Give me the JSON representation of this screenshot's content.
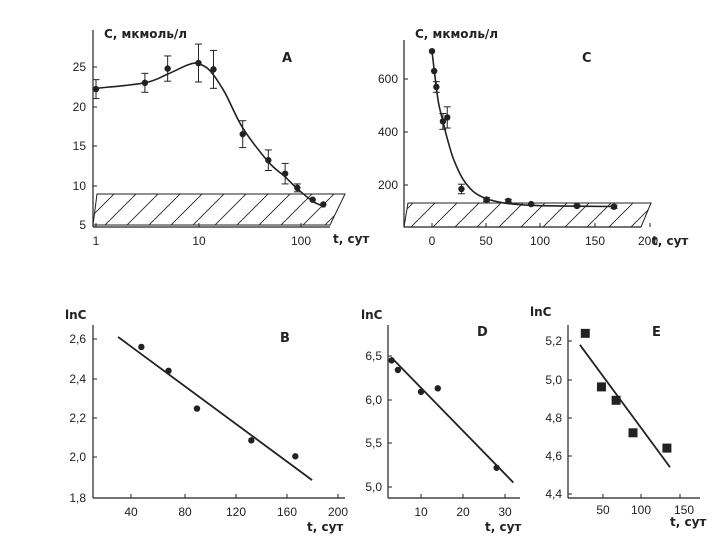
{
  "chart_data": [
    {
      "id": "A",
      "panel_label": "A",
      "type": "line",
      "scale_x": "log",
      "ylabel": "C, мкмоль/л",
      "xlabel": "t, сут",
      "x_ticks": [
        "1",
        "10",
        "100"
      ],
      "y_ticks": [
        "5",
        "10",
        "15",
        "20",
        "25"
      ],
      "xlim": [
        1,
        230
      ],
      "ylim": [
        5,
        28
      ],
      "threshold_band": [
        5.5,
        9
      ],
      "points": [
        {
          "x": 1,
          "y": 22.2,
          "err": 1.2
        },
        {
          "x": 3,
          "y": 23.0,
          "err": 1.2
        },
        {
          "x": 5,
          "y": 24.8,
          "err": 1.6
        },
        {
          "x": 10,
          "y": 25.5,
          "err": 2.4
        },
        {
          "x": 14,
          "y": 24.7,
          "err": 2.4
        },
        {
          "x": 27,
          "y": 16.5,
          "err": 1.7
        },
        {
          "x": 48,
          "y": 13.2,
          "err": 1.3
        },
        {
          "x": 70,
          "y": 11.5,
          "err": 1.3
        },
        {
          "x": 92,
          "y": 9.7,
          "err": 0.5
        },
        {
          "x": 130,
          "y": 8.2,
          "err": 0
        },
        {
          "x": 165,
          "y": 7.6,
          "err": 0
        }
      ],
      "curve": [
        [
          1,
          22.3
        ],
        [
          3,
          23.0
        ],
        [
          5,
          24.1
        ],
        [
          8,
          25.3
        ],
        [
          10,
          25.4
        ],
        [
          13,
          24.5
        ],
        [
          18,
          21.8
        ],
        [
          27,
          17.3
        ],
        [
          48,
          13.0
        ],
        [
          70,
          11.1
        ],
        [
          92,
          9.6
        ],
        [
          130,
          8.0
        ],
        [
          165,
          7.4
        ]
      ]
    },
    {
      "id": "C",
      "panel_label": "C",
      "type": "line",
      "ylabel": "C, мкмоль/л",
      "xlabel": "t, сут",
      "x_ticks": [
        "0",
        "50",
        "100",
        "150",
        "200"
      ],
      "y_ticks": [
        "200",
        "400",
        "600"
      ],
      "xlim": [
        -25,
        205
      ],
      "ylim": [
        60,
        760
      ],
      "threshold_band": [
        80,
        125
      ],
      "points": [
        {
          "x": 0,
          "y": 705,
          "err": 0
        },
        {
          "x": 2,
          "y": 630,
          "err": 0
        },
        {
          "x": 4,
          "y": 570,
          "err": 20
        },
        {
          "x": 10,
          "y": 440,
          "err": 30
        },
        {
          "x": 14,
          "y": 455,
          "err": 40
        },
        {
          "x": 27,
          "y": 185,
          "err": 18
        },
        {
          "x": 50,
          "y": 145,
          "err": 8
        },
        {
          "x": 70,
          "y": 140,
          "err": 6
        },
        {
          "x": 91,
          "y": 128,
          "err": 4
        },
        {
          "x": 133,
          "y": 121,
          "err": 3
        },
        {
          "x": 167,
          "y": 118,
          "err": 6
        }
      ],
      "curve": [
        [
          0,
          705
        ],
        [
          3,
          600
        ],
        [
          6,
          510
        ],
        [
          10,
          440
        ],
        [
          15,
          360
        ],
        [
          20,
          295
        ],
        [
          28,
          225
        ],
        [
          38,
          175
        ],
        [
          50,
          148
        ],
        [
          65,
          133
        ],
        [
          80,
          126
        ],
        [
          100,
          122
        ],
        [
          130,
          120
        ],
        [
          165,
          119
        ]
      ]
    },
    {
      "id": "B",
      "panel_label": "B",
      "type": "scatter",
      "ylabel": "lnC",
      "xlabel": "t, сут",
      "x_ticks": [
        "40",
        "80",
        "120",
        "160",
        "200"
      ],
      "y_ticks": [
        "1,8",
        "2,0",
        "2,2",
        "2,4",
        "2,6"
      ],
      "xlim": [
        10,
        200
      ],
      "ylim": [
        1.8,
        2.7
      ],
      "points": [
        [
          48,
          2.56
        ],
        [
          69,
          2.44
        ],
        [
          91,
          2.25
        ],
        [
          133,
          2.09
        ],
        [
          167,
          2.01
        ]
      ],
      "fit_line": [
        [
          30,
          2.61
        ],
        [
          180,
          1.89
        ]
      ]
    },
    {
      "id": "D",
      "panel_label": "D",
      "type": "scatter",
      "ylabel": "lnC",
      "xlabel": "t, сут",
      "x_ticks": [
        "10",
        "20",
        "30"
      ],
      "y_ticks": [
        "5,0",
        "5,5",
        "6,0",
        "6,5"
      ],
      "xlim": [
        2,
        34
      ],
      "ylim": [
        4.95,
        6.8
      ],
      "points": [
        [
          3,
          6.45
        ],
        [
          4.5,
          6.34
        ],
        [
          10,
          6.09
        ],
        [
          14,
          6.13
        ],
        [
          28,
          5.22
        ]
      ],
      "fit_line": [
        [
          3,
          6.48
        ],
        [
          32,
          5.05
        ]
      ]
    },
    {
      "id": "E",
      "panel_label": "E",
      "type": "scatter",
      "ylabel": "lnC",
      "xlabel": "t, сут",
      "x_ticks": [
        "50",
        "100",
        "150"
      ],
      "y_ticks": [
        "4,4",
        "4,6",
        "4,8",
        "5,0",
        "5,2"
      ],
      "xlim": [
        5,
        175
      ],
      "ylim": [
        4.4,
        5.33
      ],
      "points": [
        [
          27,
          5.24
        ],
        [
          48,
          4.96
        ],
        [
          67,
          4.89
        ],
        [
          89,
          4.72
        ],
        [
          133,
          4.64
        ]
      ],
      "fit_line": [
        [
          20,
          5.18
        ],
        [
          137,
          4.54
        ]
      ]
    }
  ]
}
